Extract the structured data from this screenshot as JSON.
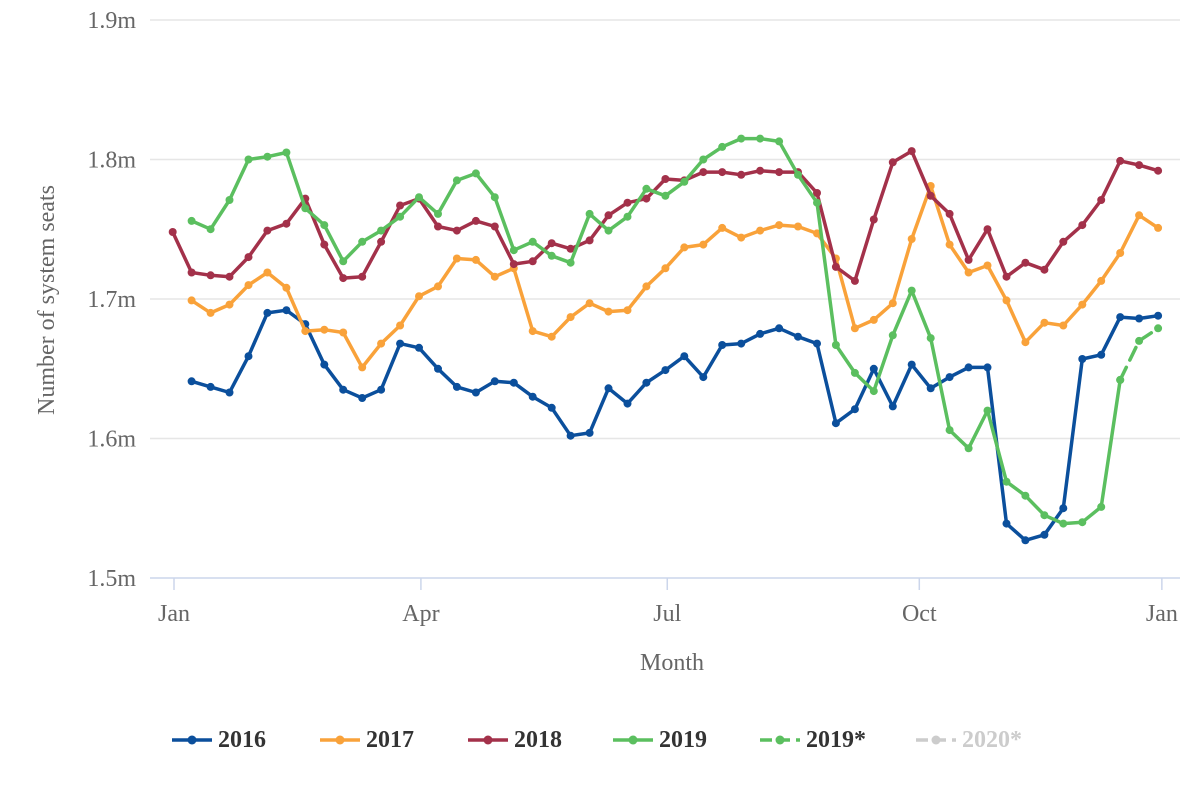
{
  "chart_data": {
    "type": "line",
    "ylabel": "Number of system seats",
    "xlabel": "Month",
    "y_ticks": [
      "1.5m",
      "1.6m",
      "1.7m",
      "1.8m",
      "1.9m"
    ],
    "ylim": [
      1.5,
      1.9
    ],
    "x_ticks": [
      "Jan",
      "Apr",
      "Jul",
      "Oct",
      "Jan"
    ],
    "x_axis_note": "weeks of year",
    "grid": "horizontal",
    "legend_position": "bottom",
    "series": [
      {
        "name": "2016",
        "color": "#0b4f9c",
        "dashed": false,
        "visible": true,
        "points": [
          [
            1,
            1.641
          ],
          [
            2,
            1.637
          ],
          [
            3,
            1.633
          ],
          [
            4,
            1.659
          ],
          [
            5,
            1.69
          ],
          [
            6,
            1.692
          ],
          [
            7,
            1.682
          ],
          [
            8,
            1.653
          ],
          [
            9,
            1.635
          ],
          [
            10,
            1.629
          ],
          [
            11,
            1.635
          ],
          [
            12,
            1.668
          ],
          [
            13,
            1.665
          ],
          [
            14,
            1.65
          ],
          [
            15,
            1.637
          ],
          [
            16,
            1.633
          ],
          [
            17,
            1.641
          ],
          [
            18,
            1.64
          ],
          [
            19,
            1.63
          ],
          [
            20,
            1.622
          ],
          [
            21,
            1.602
          ],
          [
            22,
            1.604
          ],
          [
            23,
            1.636
          ],
          [
            24,
            1.625
          ],
          [
            25,
            1.64
          ],
          [
            26,
            1.649
          ],
          [
            27,
            1.659
          ],
          [
            28,
            1.644
          ],
          [
            29,
            1.667
          ],
          [
            30,
            1.668
          ],
          [
            31,
            1.675
          ],
          [
            32,
            1.679
          ],
          [
            33,
            1.673
          ],
          [
            34,
            1.668
          ],
          [
            35,
            1.611
          ],
          [
            36,
            1.621
          ],
          [
            37,
            1.65
          ],
          [
            38,
            1.623
          ],
          [
            39,
            1.653
          ],
          [
            40,
            1.636
          ],
          [
            41,
            1.644
          ],
          [
            42,
            1.651
          ],
          [
            43,
            1.651
          ],
          [
            44,
            1.539
          ],
          [
            45,
            1.527
          ],
          [
            46,
            1.531
          ],
          [
            47,
            1.55
          ],
          [
            48,
            1.657
          ],
          [
            49,
            1.66
          ],
          [
            50,
            1.687
          ],
          [
            51,
            1.686
          ],
          [
            52,
            1.688
          ]
        ]
      },
      {
        "name": "2017",
        "color": "#f9a23a",
        "dashed": false,
        "visible": true,
        "points": [
          [
            1,
            1.699
          ],
          [
            2,
            1.69
          ],
          [
            3,
            1.696
          ],
          [
            4,
            1.71
          ],
          [
            5,
            1.719
          ],
          [
            6,
            1.708
          ],
          [
            7,
            1.677
          ],
          [
            8,
            1.678
          ],
          [
            9,
            1.676
          ],
          [
            10,
            1.651
          ],
          [
            11,
            1.668
          ],
          [
            12,
            1.681
          ],
          [
            13,
            1.702
          ],
          [
            14,
            1.709
          ],
          [
            15,
            1.729
          ],
          [
            16,
            1.728
          ],
          [
            17,
            1.716
          ],
          [
            18,
            1.722
          ],
          [
            19,
            1.677
          ],
          [
            20,
            1.673
          ],
          [
            21,
            1.687
          ],
          [
            22,
            1.697
          ],
          [
            23,
            1.691
          ],
          [
            24,
            1.692
          ],
          [
            25,
            1.709
          ],
          [
            26,
            1.722
          ],
          [
            27,
            1.737
          ],
          [
            28,
            1.739
          ],
          [
            29,
            1.751
          ],
          [
            30,
            1.744
          ],
          [
            31,
            1.749
          ],
          [
            32,
            1.753
          ],
          [
            33,
            1.752
          ],
          [
            34,
            1.747
          ],
          [
            35,
            1.729
          ],
          [
            36,
            1.679
          ],
          [
            37,
            1.685
          ],
          [
            38,
            1.697
          ],
          [
            39,
            1.743
          ],
          [
            40,
            1.781
          ],
          [
            41,
            1.739
          ],
          [
            42,
            1.719
          ],
          [
            43,
            1.724
          ],
          [
            44,
            1.699
          ],
          [
            45,
            1.669
          ],
          [
            46,
            1.683
          ],
          [
            47,
            1.681
          ],
          [
            48,
            1.696
          ],
          [
            49,
            1.713
          ],
          [
            50,
            1.733
          ],
          [
            51,
            1.76
          ],
          [
            52,
            1.751
          ]
        ]
      },
      {
        "name": "2018",
        "color": "#a3314a",
        "dashed": false,
        "visible": true,
        "points": [
          [
            0,
            1.748
          ],
          [
            1,
            1.719
          ],
          [
            2,
            1.717
          ],
          [
            3,
            1.716
          ],
          [
            4,
            1.73
          ],
          [
            5,
            1.749
          ],
          [
            6,
            1.754
          ],
          [
            7,
            1.772
          ],
          [
            8,
            1.739
          ],
          [
            9,
            1.715
          ],
          [
            10,
            1.716
          ],
          [
            11,
            1.741
          ],
          [
            12,
            1.767
          ],
          [
            13,
            1.772
          ],
          [
            14,
            1.752
          ],
          [
            15,
            1.749
          ],
          [
            16,
            1.756
          ],
          [
            17,
            1.752
          ],
          [
            18,
            1.725
          ],
          [
            19,
            1.727
          ],
          [
            20,
            1.74
          ],
          [
            21,
            1.736
          ],
          [
            22,
            1.742
          ],
          [
            23,
            1.76
          ],
          [
            24,
            1.769
          ],
          [
            25,
            1.772
          ],
          [
            26,
            1.786
          ],
          [
            27,
            1.785
          ],
          [
            28,
            1.791
          ],
          [
            29,
            1.791
          ],
          [
            30,
            1.789
          ],
          [
            31,
            1.792
          ],
          [
            32,
            1.791
          ],
          [
            33,
            1.791
          ],
          [
            34,
            1.776
          ],
          [
            35,
            1.723
          ],
          [
            36,
            1.713
          ],
          [
            37,
            1.757
          ],
          [
            38,
            1.798
          ],
          [
            39,
            1.806
          ],
          [
            40,
            1.774
          ],
          [
            41,
            1.761
          ],
          [
            42,
            1.728
          ],
          [
            43,
            1.75
          ],
          [
            44,
            1.716
          ],
          [
            45,
            1.726
          ],
          [
            46,
            1.721
          ],
          [
            47,
            1.741
          ],
          [
            48,
            1.753
          ],
          [
            49,
            1.771
          ],
          [
            50,
            1.799
          ],
          [
            51,
            1.796
          ],
          [
            52,
            1.792
          ]
        ]
      },
      {
        "name": "2019",
        "color": "#5bbf5f",
        "dashed": false,
        "visible": true,
        "points": [
          [
            1,
            1.756
          ],
          [
            2,
            1.75
          ],
          [
            3,
            1.771
          ],
          [
            4,
            1.8
          ],
          [
            5,
            1.802
          ],
          [
            6,
            1.805
          ],
          [
            7,
            1.765
          ],
          [
            8,
            1.753
          ],
          [
            9,
            1.727
          ],
          [
            10,
            1.741
          ],
          [
            11,
            1.749
          ],
          [
            12,
            1.759
          ],
          [
            13,
            1.773
          ],
          [
            14,
            1.761
          ],
          [
            15,
            1.785
          ],
          [
            16,
            1.79
          ],
          [
            17,
            1.773
          ],
          [
            18,
            1.735
          ],
          [
            19,
            1.741
          ],
          [
            20,
            1.731
          ],
          [
            21,
            1.726
          ],
          [
            22,
            1.761
          ],
          [
            23,
            1.749
          ],
          [
            24,
            1.759
          ],
          [
            25,
            1.779
          ],
          [
            26,
            1.774
          ],
          [
            27,
            1.784
          ],
          [
            28,
            1.8
          ],
          [
            29,
            1.809
          ],
          [
            30,
            1.815
          ],
          [
            31,
            1.815
          ],
          [
            32,
            1.813
          ],
          [
            33,
            1.789
          ],
          [
            34,
            1.769
          ],
          [
            35,
            1.667
          ],
          [
            36,
            1.647
          ],
          [
            37,
            1.634
          ],
          [
            38,
            1.674
          ],
          [
            39,
            1.706
          ],
          [
            40,
            1.672
          ],
          [
            41,
            1.606
          ],
          [
            42,
            1.593
          ],
          [
            43,
            1.62
          ],
          [
            44,
            1.569
          ],
          [
            45,
            1.559
          ],
          [
            46,
            1.545
          ],
          [
            47,
            1.539
          ],
          [
            48,
            1.54
          ],
          [
            49,
            1.551
          ],
          [
            50,
            1.642
          ]
        ]
      },
      {
        "name": "2019*",
        "color": "#5bbf5f",
        "dashed": true,
        "visible": true,
        "points": [
          [
            50,
            1.642
          ],
          [
            51,
            1.67
          ],
          [
            52,
            1.679
          ]
        ]
      },
      {
        "name": "2020*",
        "color": "#cccccc",
        "dashed": true,
        "visible": false,
        "points": []
      }
    ]
  }
}
